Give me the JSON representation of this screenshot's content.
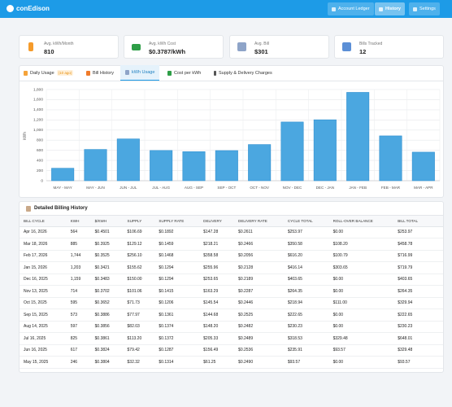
{
  "header": {
    "logo": "conEdison",
    "nav": [
      "Account Ledger",
      "History",
      "Settings"
    ]
  },
  "stats": [
    {
      "label": "Avg. kWh/Month",
      "value": "810"
    },
    {
      "label": "Avg. kWh Cost",
      "value": "$0.3787/kWh"
    },
    {
      "label": "Avg. Bill",
      "value": "$301"
    },
    {
      "label": "Bills Tracked",
      "value": "12"
    }
  ],
  "tabs": {
    "items": [
      "Daily Usage",
      "Bill History",
      "kWh Usage",
      "Cost per kWh",
      "Supply & Delivery Charges"
    ],
    "badge": "(10 ago)"
  },
  "chart_data": {
    "type": "bar",
    "ylabel": "kWh",
    "color": "#4ba7e0",
    "grid": true,
    "categories": [
      "MAY - MAY",
      "MAY - JUN",
      "JUN - JUL",
      "JUL - AUG",
      "AUG - SEP",
      "SEP - OCT",
      "OCT - NOV",
      "NOV - DEC",
      "DEC - JAN",
      "JAN - FEB",
      "FEB - MAR",
      "MAR - APR"
    ],
    "values": [
      246,
      617,
      825,
      597,
      573,
      595,
      714,
      1159,
      1203,
      1744,
      885,
      564
    ],
    "ylim": [
      0,
      1800
    ],
    "yticks": [
      0,
      200,
      400,
      600,
      800,
      {
        "value": 1000,
        "label": "1,000"
      },
      {
        "value": 1200,
        "label": "1,200"
      },
      {
        "value": 1400,
        "label": "1,400"
      },
      {
        "value": 1600,
        "label": "1,600"
      },
      {
        "value": 1800,
        "label": "1,800"
      }
    ]
  },
  "table": {
    "title": "Detailed Billing History",
    "columns": [
      "BILL CYCLE",
      "KWH",
      "$/KWH",
      "SUPPLY",
      "SUPPLY RATE",
      "DELIVERY",
      "DELIVERY RATE",
      "CYCLE TOTAL",
      "ROLL-OVER BALANCE",
      "BILL TOTAL"
    ],
    "rows": [
      [
        "Apr 16, 2026",
        "564",
        "$0.4501",
        "$106.69",
        "$0.1892",
        "$147.28",
        "$0.2611",
        "$253.97",
        "$0.00",
        "$253.97"
      ],
      [
        "Mar 18, 2026",
        "885",
        "$0.3925",
        "$129.12",
        "$0.1459",
        "$218.21",
        "$0.2466",
        "$350.58",
        "$108.20",
        "$458.78"
      ],
      [
        "Feb 17, 2026",
        "1,744",
        "$0.3525",
        "$256.10",
        "$0.1468",
        "$358.58",
        "$0.2056",
        "$616.20",
        "$100.79",
        "$716.99"
      ],
      [
        "Jan 15, 2026",
        "1,203",
        "$0.3421",
        "$155.62",
        "$0.1294",
        "$255.96",
        "$0.2128",
        "$416.14",
        "$303.65",
        "$719.79"
      ],
      [
        "Dec 16, 2025",
        "1,159",
        "$0.3483",
        "$150.00",
        "$0.1294",
        "$253.65",
        "$0.2189",
        "$403.65",
        "$0.00",
        "$403.65"
      ],
      [
        "Nov 13, 2025",
        "714",
        "$0.3702",
        "$101.06",
        "$0.1415",
        "$163.29",
        "$0.2287",
        "$264.35",
        "$0.00",
        "$264.35"
      ],
      [
        "Oct 15, 2025",
        "595",
        "$0.3652",
        "$71.73",
        "$0.1206",
        "$145.54",
        "$0.2446",
        "$218.94",
        "$111.00",
        "$329.94"
      ],
      [
        "Sep 15, 2025",
        "573",
        "$0.3886",
        "$77.97",
        "$0.1361",
        "$144.68",
        "$0.2525",
        "$222.65",
        "$0.00",
        "$222.65"
      ],
      [
        "Aug 14, 2025",
        "597",
        "$0.3856",
        "$82.03",
        "$0.1374",
        "$148.20",
        "$0.2482",
        "$230.23",
        "$0.00",
        "$230.23"
      ],
      [
        "Jul 16, 2025",
        "825",
        "$0.3861",
        "$113.20",
        "$0.1372",
        "$205.33",
        "$0.2489",
        "$318.53",
        "$329.48",
        "$648.01"
      ],
      [
        "Jun 16, 2025",
        "617",
        "$0.3824",
        "$79.42",
        "$0.1287",
        "$156.49",
        "$0.2536",
        "$235.91",
        "$93.57",
        "$329.48"
      ],
      [
        "May 15, 2025",
        "246",
        "$0.3804",
        "$32.32",
        "$0.1314",
        "$61.25",
        "$0.2490",
        "$93.57",
        "$0.00",
        "$93.57"
      ]
    ]
  }
}
